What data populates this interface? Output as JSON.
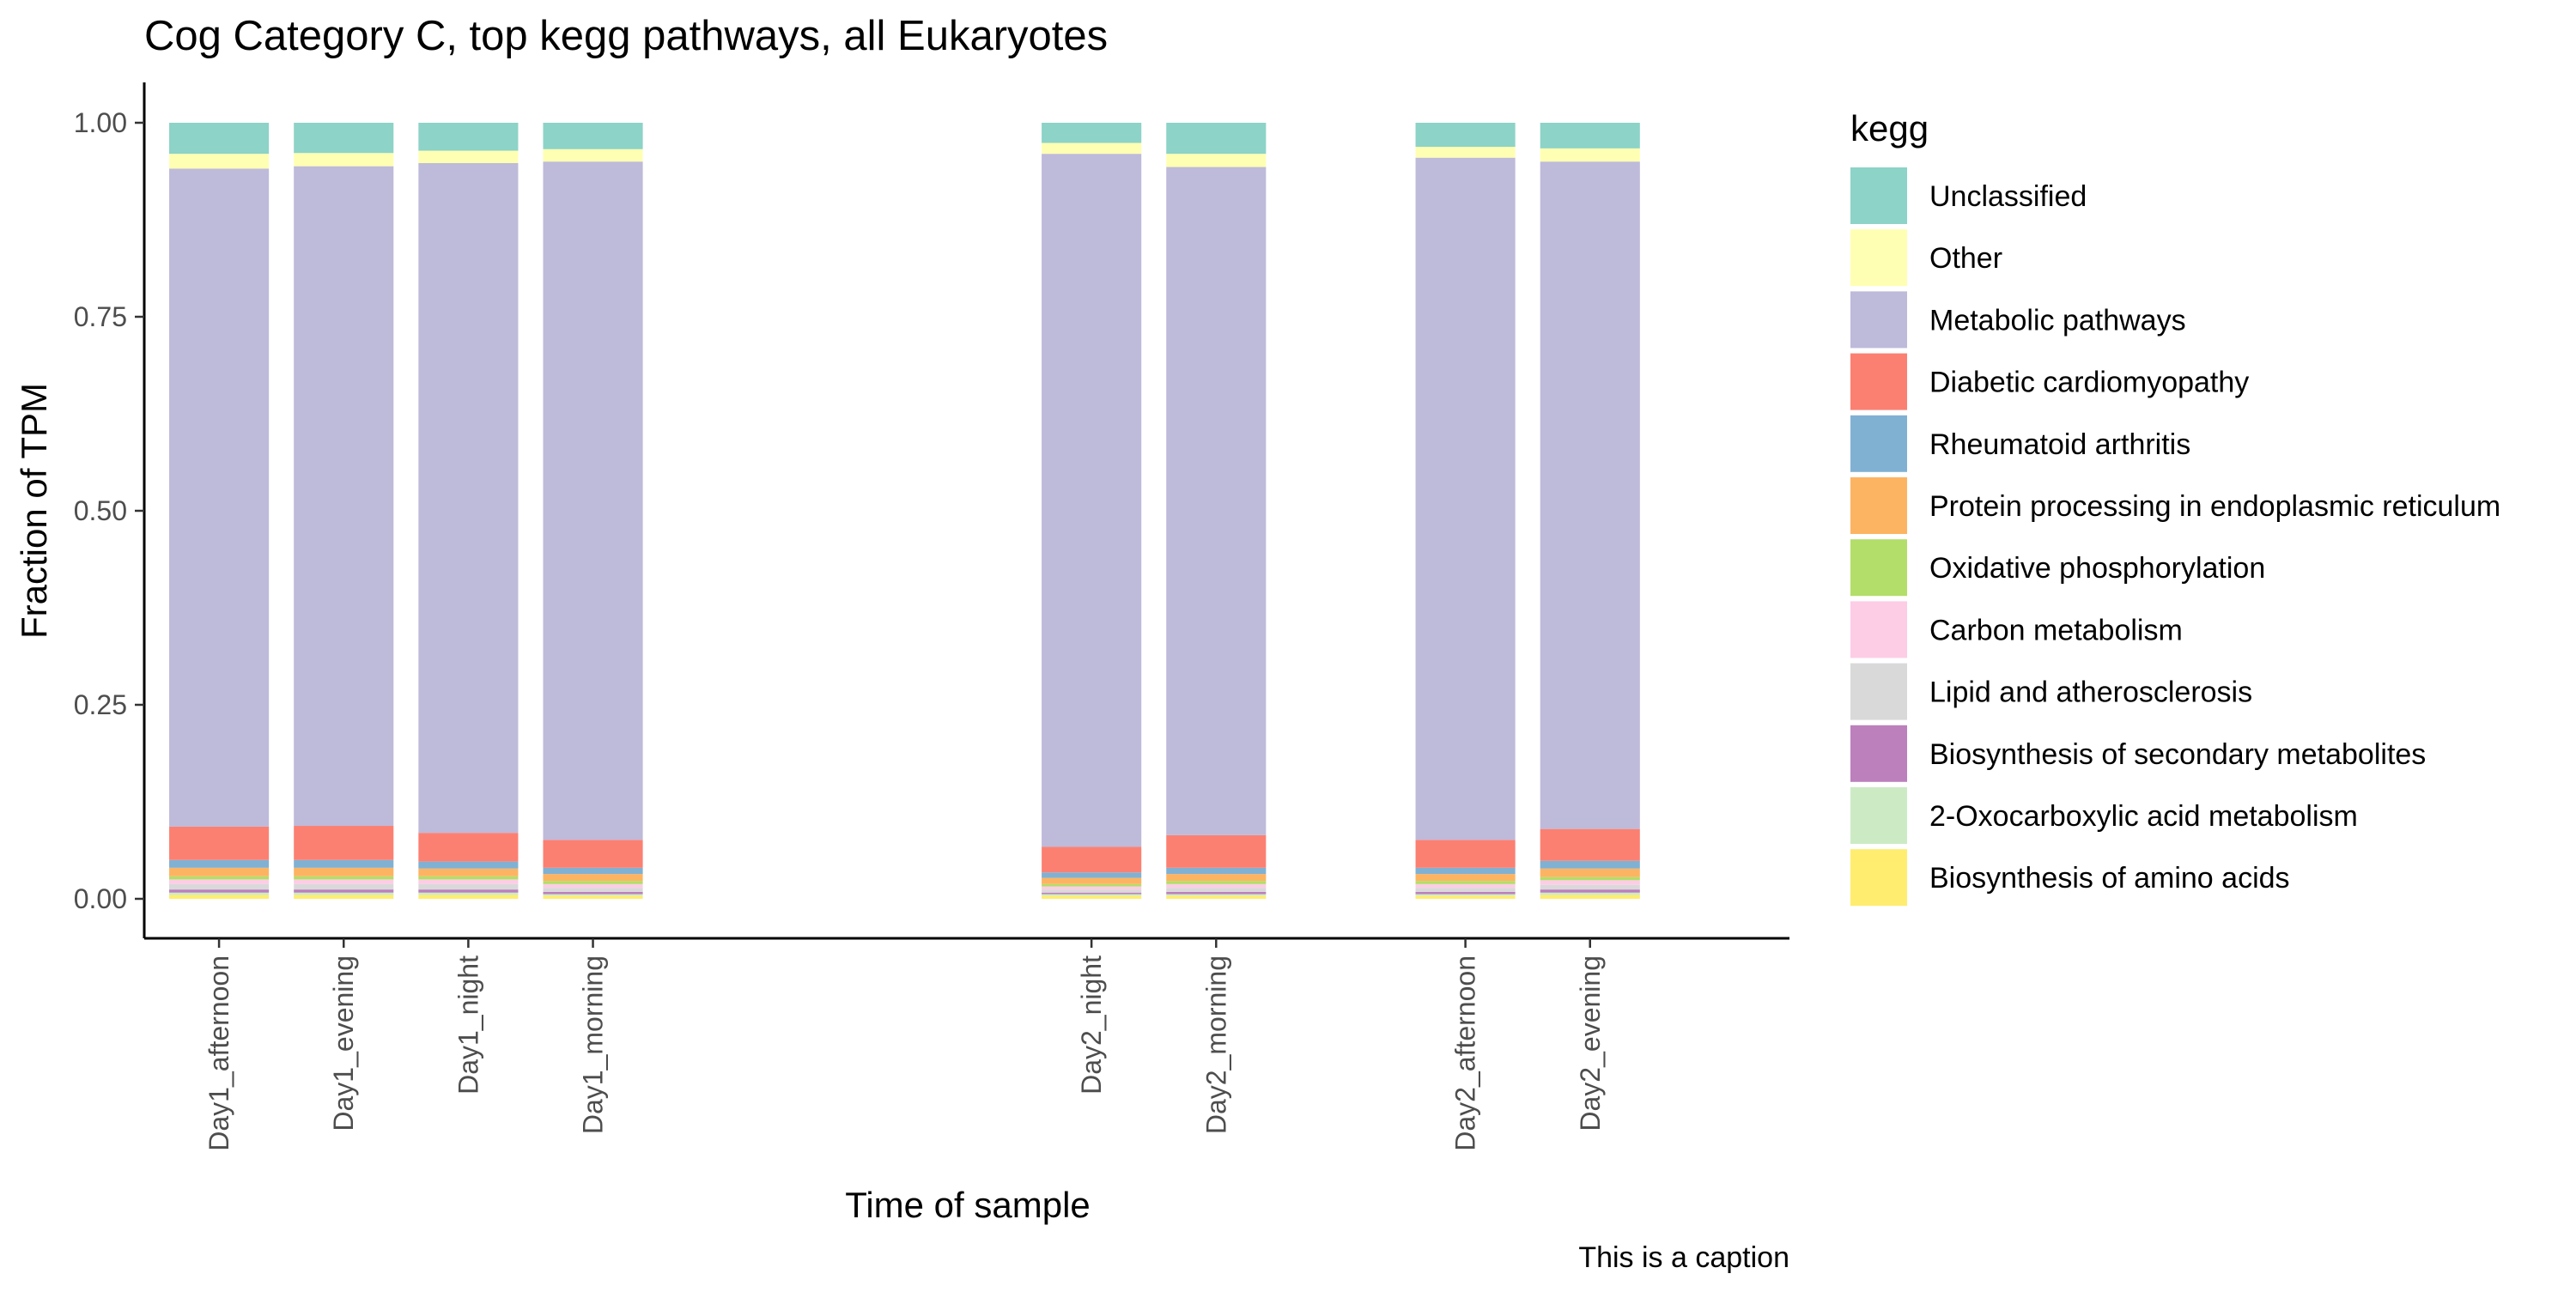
{
  "chart_data": {
    "type": "bar",
    "stacked": true,
    "title": "Cog Category C, top kegg pathways, all Eukaryotes",
    "xlabel": "Time of sample",
    "ylabel": "Fraction of TPM",
    "caption": "This is a caption",
    "ylim": [
      0,
      1
    ],
    "yticks": [
      "0.00",
      "0.25",
      "0.50",
      "0.75",
      "1.00"
    ],
    "legend": {
      "title": "kegg",
      "position": "right"
    },
    "grid": false,
    "categories": [
      "Day1_afternoon",
      "Day1_evening",
      "Day1_night",
      "Day1_morning",
      "Day2_night",
      "Day2_morning",
      "Day2_afternoon",
      "Day2_evening"
    ],
    "x_positions": [
      1,
      2,
      3,
      4,
      8,
      9,
      11,
      12
    ],
    "x_range": [
      0.4,
      13.6
    ],
    "series": [
      {
        "name": "Biosynthesis of amino acids",
        "color": "#FFED6F",
        "values": [
          0.005,
          0.005,
          0.005,
          0.004,
          0.004,
          0.004,
          0.004,
          0.005
        ]
      },
      {
        "name": "2-Oxocarboxylic acid metabolism",
        "color": "#CCEBC5",
        "values": [
          0.003,
          0.003,
          0.003,
          0.002,
          0.002,
          0.002,
          0.002,
          0.003
        ]
      },
      {
        "name": "Biosynthesis of secondary metabolites",
        "color": "#BC80BD",
        "values": [
          0.004,
          0.004,
          0.004,
          0.003,
          0.002,
          0.003,
          0.003,
          0.004
        ]
      },
      {
        "name": "Lipid and atherosclerosis",
        "color": "#D9D9D9",
        "values": [
          0.007,
          0.007,
          0.007,
          0.005,
          0.004,
          0.005,
          0.005,
          0.006
        ]
      },
      {
        "name": "Carbon metabolism",
        "color": "#FCCDE5",
        "values": [
          0.006,
          0.006,
          0.006,
          0.005,
          0.004,
          0.005,
          0.005,
          0.006
        ]
      },
      {
        "name": "Oxidative phosphorylation",
        "color": "#B3DE69",
        "values": [
          0.004,
          0.004,
          0.004,
          0.004,
          0.003,
          0.004,
          0.004,
          0.004
        ]
      },
      {
        "name": "Protein processing in endoplasmic reticulum",
        "color": "#FDB462",
        "values": [
          0.011,
          0.011,
          0.01,
          0.009,
          0.008,
          0.009,
          0.009,
          0.011
        ]
      },
      {
        "name": "Rheumatoid arthritis",
        "color": "#80B1D3",
        "values": [
          0.01,
          0.01,
          0.009,
          0.008,
          0.007,
          0.008,
          0.008,
          0.01
        ]
      },
      {
        "name": "Diabetic cardiomyopathy",
        "color": "#FB8072",
        "values": [
          0.043,
          0.044,
          0.037,
          0.036,
          0.033,
          0.042,
          0.036,
          0.041
        ]
      },
      {
        "name": "Metabolic pathways",
        "color": "#BEBADA",
        "values": [
          0.848,
          0.85,
          0.863,
          0.874,
          0.893,
          0.861,
          0.879,
          0.86
        ]
      },
      {
        "name": "Other",
        "color": "#FFFFB3",
        "values": [
          0.019,
          0.017,
          0.016,
          0.016,
          0.014,
          0.017,
          0.014,
          0.017
        ]
      },
      {
        "name": "Unclassified",
        "color": "#8DD3C7",
        "values": [
          0.04,
          0.039,
          0.036,
          0.034,
          0.026,
          0.04,
          0.031,
          0.033
        ]
      }
    ]
  }
}
